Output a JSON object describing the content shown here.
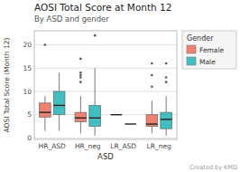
{
  "chart_data": {
    "type": "box",
    "title": "AOSI Total Score at Month 12",
    "subtitle": "By ASD and gender",
    "x_label": "ASD",
    "y_label": "AOSI Total Score (Month 12)",
    "annotations": [
      "Created by KMD"
    ],
    "legend_title": "Gender",
    "legend": "right",
    "grid": true,
    "categories": [
      "HR_ASD",
      "HR_neg",
      "LR_ASD",
      "LR_neg"
    ],
    "series": [
      {
        "name": "Female",
        "color": "#F08070",
        "values": [
          {
            "q1": 4.5,
            "median": 5.5,
            "q3": 7.5,
            "whislo": 1.5,
            "whishi": 9.0,
            "fliers": [
              20.0
            ]
          },
          {
            "q1": 3.5,
            "median": 4.3,
            "q3": 5.5,
            "whislo": 1.0,
            "whishi": 9.0,
            "fliers": [
              12.0,
              13.0,
              13.5,
              14.0,
              17.0
            ]
          },
          {
            "q1": 5.0,
            "median": 5.0,
            "q3": 5.0,
            "whislo": 5.0,
            "whishi": 5.0,
            "fliers": []
          },
          {
            "q1": 2.5,
            "median": 3.0,
            "q3": 5.0,
            "whislo": 1.0,
            "whishi": 8.0,
            "fliers": [
              11.0,
              13.5,
              16.0
            ]
          }
        ]
      },
      {
        "name": "Male",
        "color": "#40BFC0",
        "values": [
          {
            "q1": 5.0,
            "median": 7.0,
            "q3": 10.0,
            "whislo": 1.5,
            "whishi": 14.0,
            "fliers": []
          },
          {
            "q1": 2.5,
            "median": 4.3,
            "q3": 7.0,
            "whislo": 0.5,
            "whishi": 15.0,
            "fliers": [
              22.0
            ]
          },
          {
            "q1": 3.0,
            "median": 3.0,
            "q3": 3.0,
            "whislo": 3.0,
            "whishi": 3.0,
            "fliers": []
          },
          {
            "q1": 2.0,
            "median": 4.0,
            "q3": 5.5,
            "whislo": 0.5,
            "whishi": 9.0,
            "fliers": [
              12.0,
              13.0,
              16.0
            ]
          }
        ]
      }
    ],
    "ylim": [
      -0.3,
      23
    ],
    "yticks": [
      0,
      5,
      10,
      15,
      20
    ]
  }
}
